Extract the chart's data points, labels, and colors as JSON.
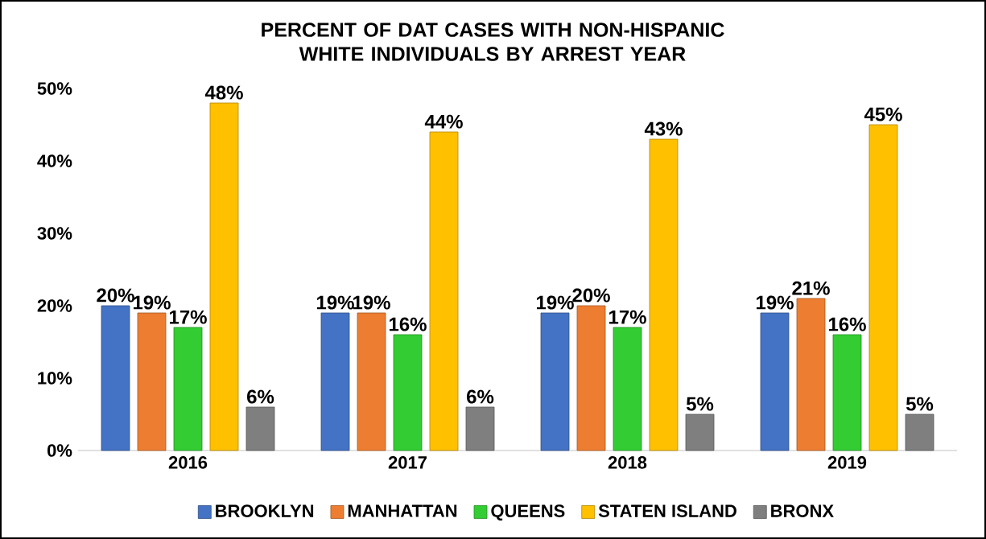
{
  "chart_data": {
    "type": "bar",
    "title": "PERCENT OF DAT CASES WITH NON-HISPANIC WHITE INDIVIDUALS BY ARREST YEAR",
    "categories": [
      "2016",
      "2017",
      "2018",
      "2019"
    ],
    "series": [
      {
        "name": "BROOKLYN",
        "color": "#4472c4",
        "values": [
          20,
          19,
          19,
          19
        ],
        "value_labels": [
          "20%",
          "19%",
          "19%",
          "19%"
        ]
      },
      {
        "name": "MANHATTAN",
        "color": "#ed7d31",
        "values": [
          19,
          19,
          20,
          21
        ],
        "value_labels": [
          "19%",
          "19%",
          "20%",
          "21%"
        ]
      },
      {
        "name": "QUEENS",
        "color": "#33cc33",
        "values": [
          17,
          16,
          17,
          16
        ],
        "value_labels": [
          "17%",
          "16%",
          "17%",
          "16%"
        ]
      },
      {
        "name": "STATEN ISLAND",
        "color": "#ffc000",
        "values": [
          48,
          44,
          43,
          45
        ],
        "value_labels": [
          "48%",
          "44%",
          "43%",
          "45%"
        ]
      },
      {
        "name": "BRONX",
        "color": "#7f7f7f",
        "values": [
          6,
          6,
          5,
          5
        ],
        "value_labels": [
          "6%",
          "6%",
          "5%",
          "5%"
        ]
      }
    ],
    "ylim": [
      0,
      50
    ],
    "yticks": [
      {
        "value": 0,
        "label": "0%"
      },
      {
        "value": 10,
        "label": "10%"
      },
      {
        "value": 20,
        "label": "20%"
      },
      {
        "value": 30,
        "label": "30%"
      },
      {
        "value": 40,
        "label": "40%"
      },
      {
        "value": 50,
        "label": "50%"
      }
    ],
    "legend": "bottom"
  }
}
